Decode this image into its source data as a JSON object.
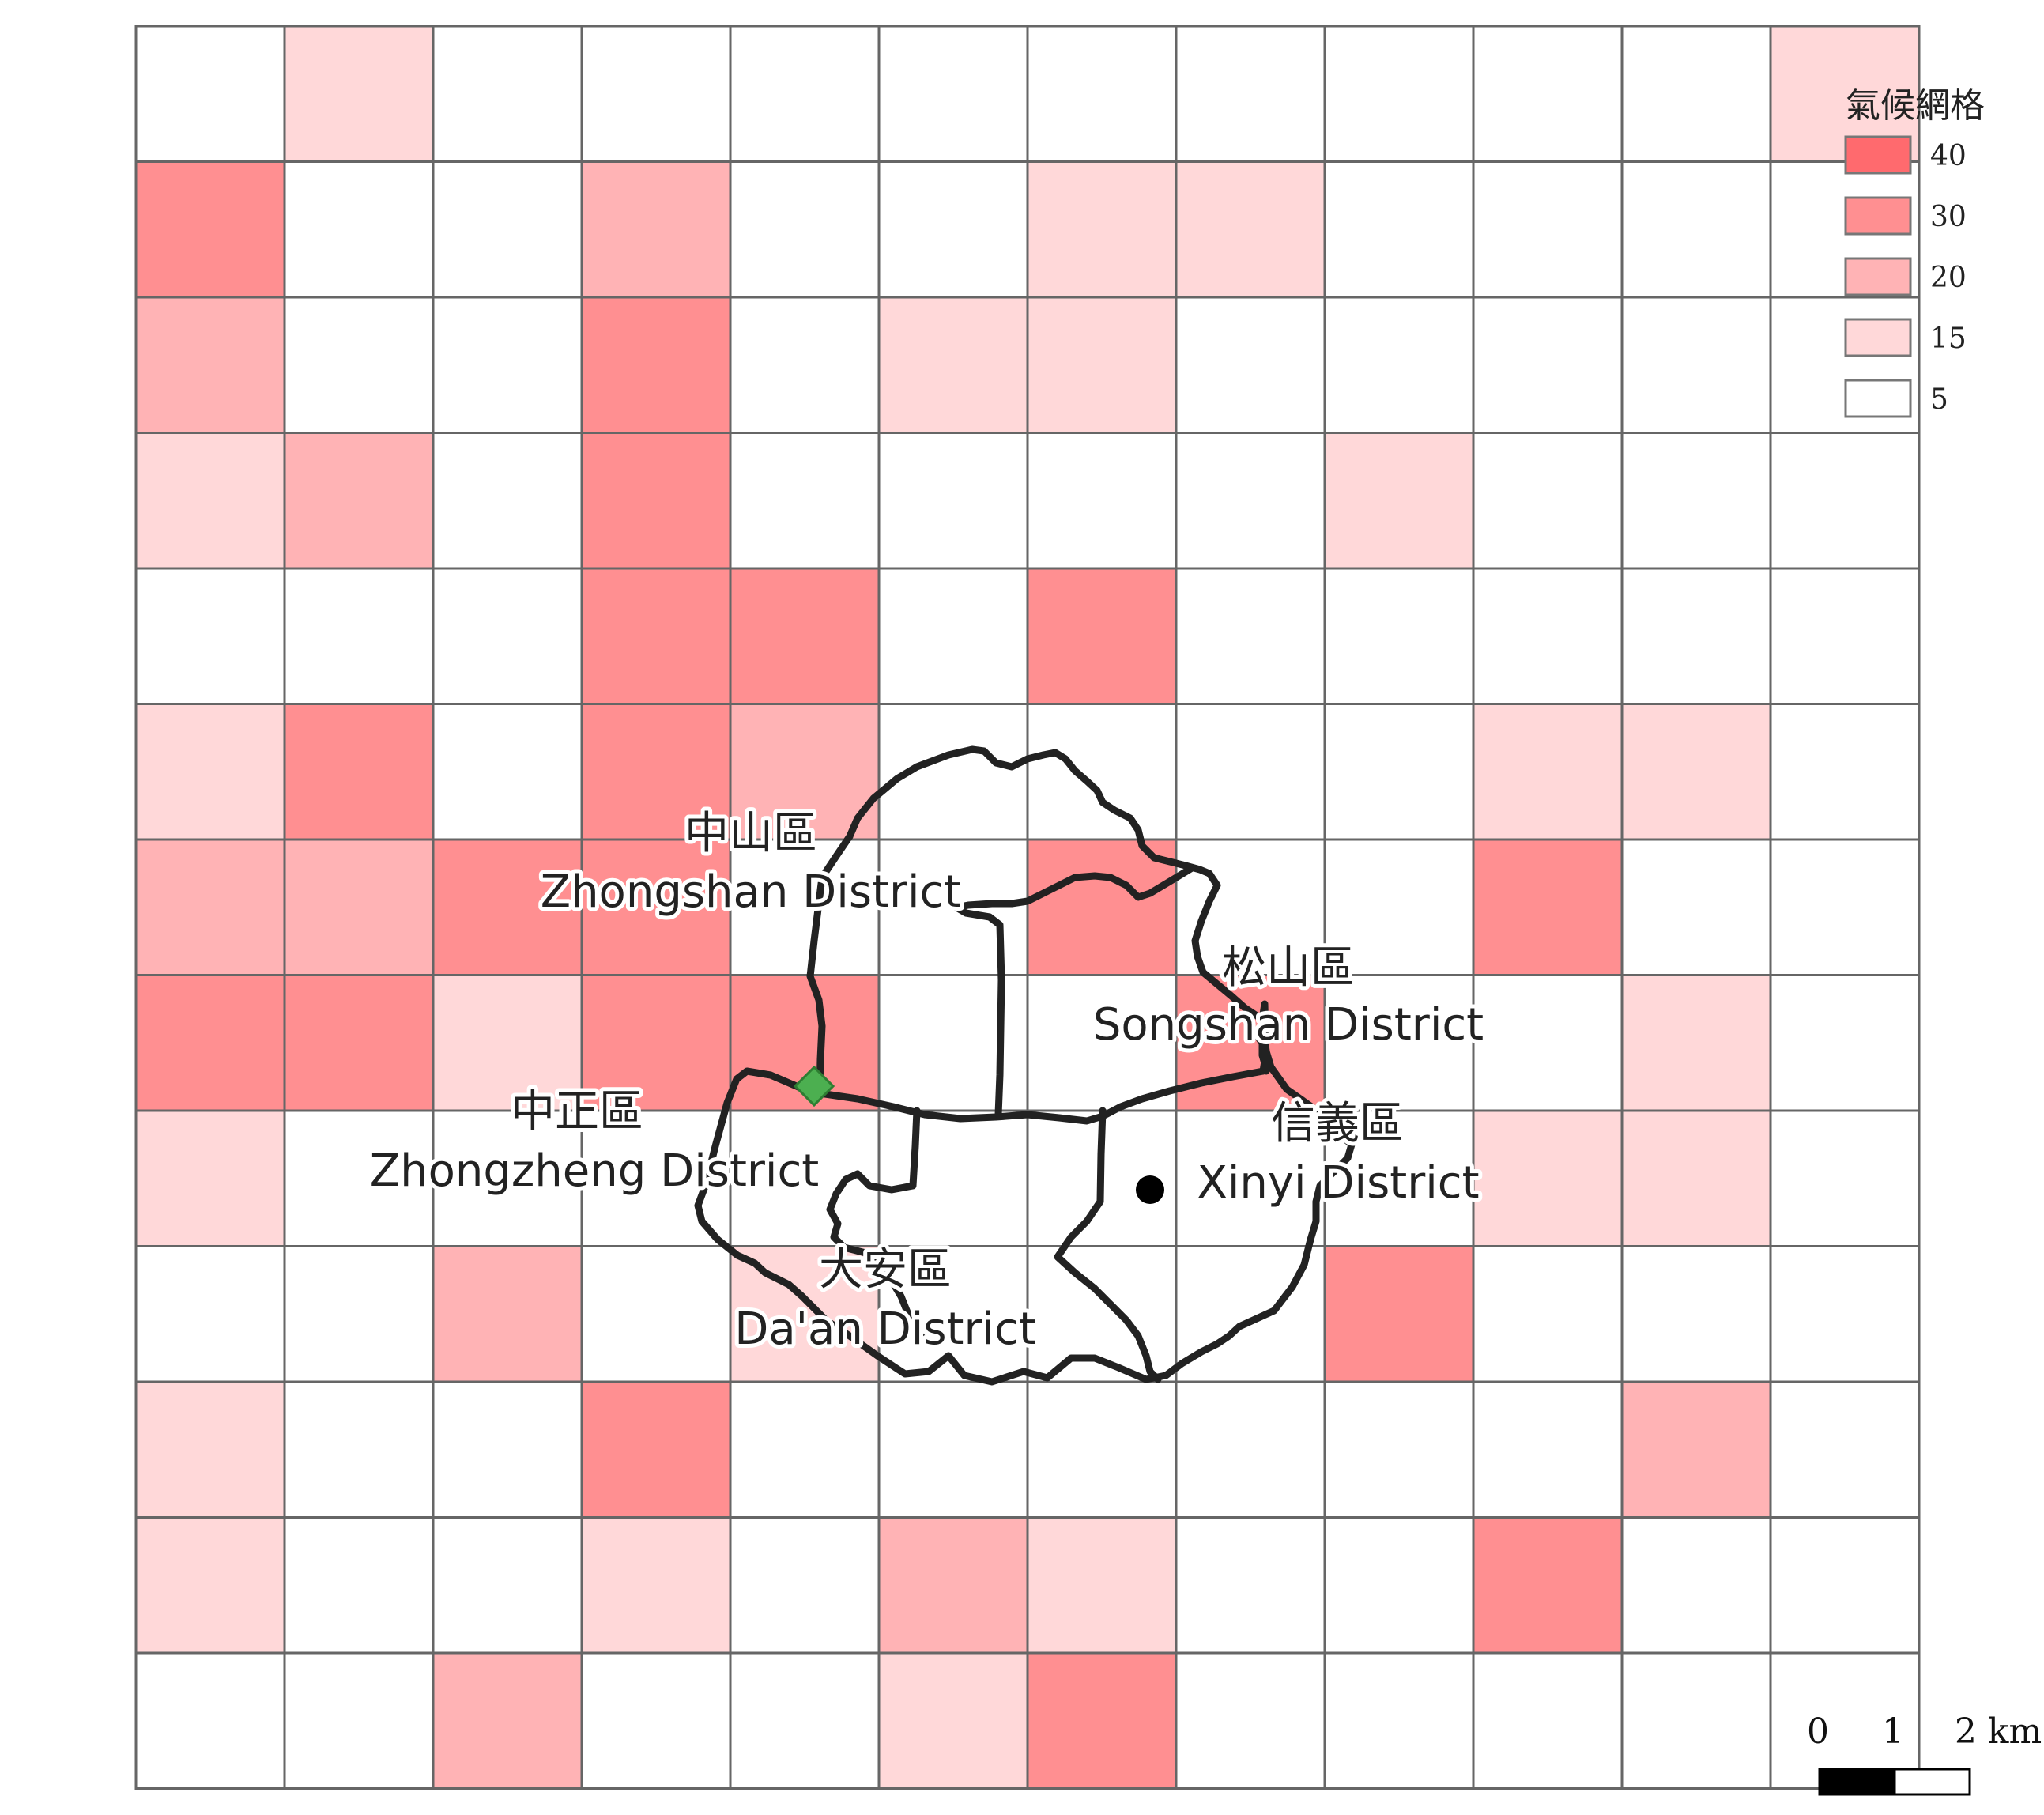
{
  "legend": {
    "title": "氣候網格",
    "items": [
      {
        "label": "40",
        "color": "#ff6a6e"
      },
      {
        "label": "30",
        "color": "#ff8f91"
      },
      {
        "label": "20",
        "color": "#ffb3b5"
      },
      {
        "label": "15",
        "color": "#ffd8d9"
      },
      {
        "label": "5",
        "color": "#ffffff"
      }
    ]
  },
  "grid": {
    "class_colors": [
      "#ffffff",
      "#ffd8d9",
      "#ffb3b5",
      "#ff8f91",
      "#ff6a6e"
    ],
    "cells": [
      [
        0,
        1,
        0,
        0,
        0,
        0,
        0,
        0,
        0,
        0,
        0,
        1
      ],
      [
        3,
        0,
        0,
        2,
        0,
        0,
        1,
        1,
        0,
        0,
        0,
        0
      ],
      [
        2,
        0,
        0,
        3,
        0,
        1,
        1,
        0,
        0,
        0,
        0,
        0
      ],
      [
        1,
        2,
        0,
        3,
        0,
        0,
        0,
        0,
        1,
        0,
        0,
        0
      ],
      [
        0,
        0,
        0,
        3,
        3,
        0,
        3,
        0,
        0,
        0,
        0,
        0
      ],
      [
        1,
        3,
        0,
        3,
        2,
        0,
        0,
        0,
        0,
        1,
        1,
        0
      ],
      [
        2,
        2,
        3,
        3,
        0,
        0,
        3,
        0,
        0,
        3,
        0,
        0
      ],
      [
        3,
        3,
        1,
        3,
        3,
        0,
        0,
        3,
        0,
        0,
        1,
        0
      ],
      [
        1,
        0,
        0,
        0,
        0,
        0,
        0,
        0,
        0,
        1,
        1,
        0
      ],
      [
        0,
        0,
        2,
        0,
        1,
        0,
        0,
        0,
        3,
        0,
        0,
        0
      ],
      [
        1,
        0,
        0,
        3,
        0,
        0,
        0,
        0,
        0,
        0,
        2,
        0
      ],
      [
        1,
        0,
        0,
        1,
        0,
        2,
        1,
        0,
        0,
        3,
        0,
        0
      ],
      [
        0,
        0,
        2,
        0,
        0,
        1,
        3,
        0,
        0,
        0,
        0,
        0
      ]
    ]
  },
  "districts": [
    {
      "zh": "中山區",
      "en": "Zhongshan District"
    },
    {
      "zh": "松山區",
      "en": "Songshan District"
    },
    {
      "zh": "中正區",
      "en": "Zhongzheng District"
    },
    {
      "zh": "信義區",
      "en": "Xinyi District"
    },
    {
      "zh": "大安區",
      "en": "Da'an District"
    }
  ],
  "markers": [
    {
      "name": "station-diamond",
      "color": "#4caf50"
    },
    {
      "name": "station-dot",
      "color": "#000000"
    }
  ],
  "scale_bar": {
    "labels": [
      "0",
      "1",
      "2 km"
    ]
  }
}
